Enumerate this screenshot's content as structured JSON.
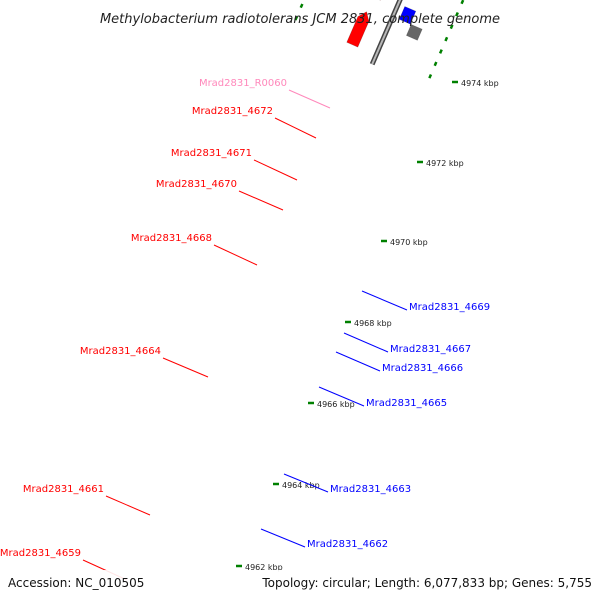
{
  "title": "Methylobacterium radiotolerans JCM 2831, complete genome",
  "accession": "Accession: NC_010505",
  "summary": "Topology: circular; Length: 6,077,833 bp; Genes: 5,755",
  "colors": {
    "red": "#ff0000",
    "blue": "#0000ff",
    "pink": "#ff3399",
    "navy": "#000066",
    "orange": "#ff8c00",
    "gray": "#666666",
    "rna_label": "#ff88bb",
    "ruler": "#008000"
  },
  "ruler_labels": [
    {
      "text": "4974 kbp"
    },
    {
      "text": "4972 kbp"
    },
    {
      "text": "4970 kbp"
    },
    {
      "text": "4968 kbp"
    },
    {
      "text": "4966 kbp"
    },
    {
      "text": "4964 kbp"
    },
    {
      "text": "4962 kbp"
    }
  ],
  "genes": [
    {
      "label": "Mrad2831_R0060",
      "color": "pink",
      "label_color": "rna_label"
    },
    {
      "label": "Mrad2831_4672",
      "color": "red",
      "label_color": "red"
    },
    {
      "label": "Mrad2831_4671",
      "color": "red",
      "label_color": "red"
    },
    {
      "label": "Mrad2831_4670",
      "color": "red",
      "label_color": "red"
    },
    {
      "label": "Mrad2831_4668",
      "color": "red",
      "label_color": "red"
    },
    {
      "label": "Mrad2831_4664",
      "color": "red",
      "label_color": "red"
    },
    {
      "label": "Mrad2831_4661",
      "color": "red",
      "label_color": "red"
    },
    {
      "label": "Mrad2831_4659",
      "color": "red",
      "label_color": "red"
    },
    {
      "label": "Mrad2831_4669",
      "color": "orange",
      "label_color": "blue"
    },
    {
      "label": "Mrad2831_4667",
      "color": "blue",
      "label_color": "blue"
    },
    {
      "label": "Mrad2831_4666",
      "color": "blue",
      "label_color": "blue"
    },
    {
      "label": "Mrad2831_4665",
      "color": "blue",
      "label_color": "blue"
    },
    {
      "label": "Mrad2831_4663",
      "color": "blue",
      "label_color": "blue"
    },
    {
      "label": "Mrad2831_4662",
      "color": "blue",
      "label_color": "blue"
    }
  ]
}
